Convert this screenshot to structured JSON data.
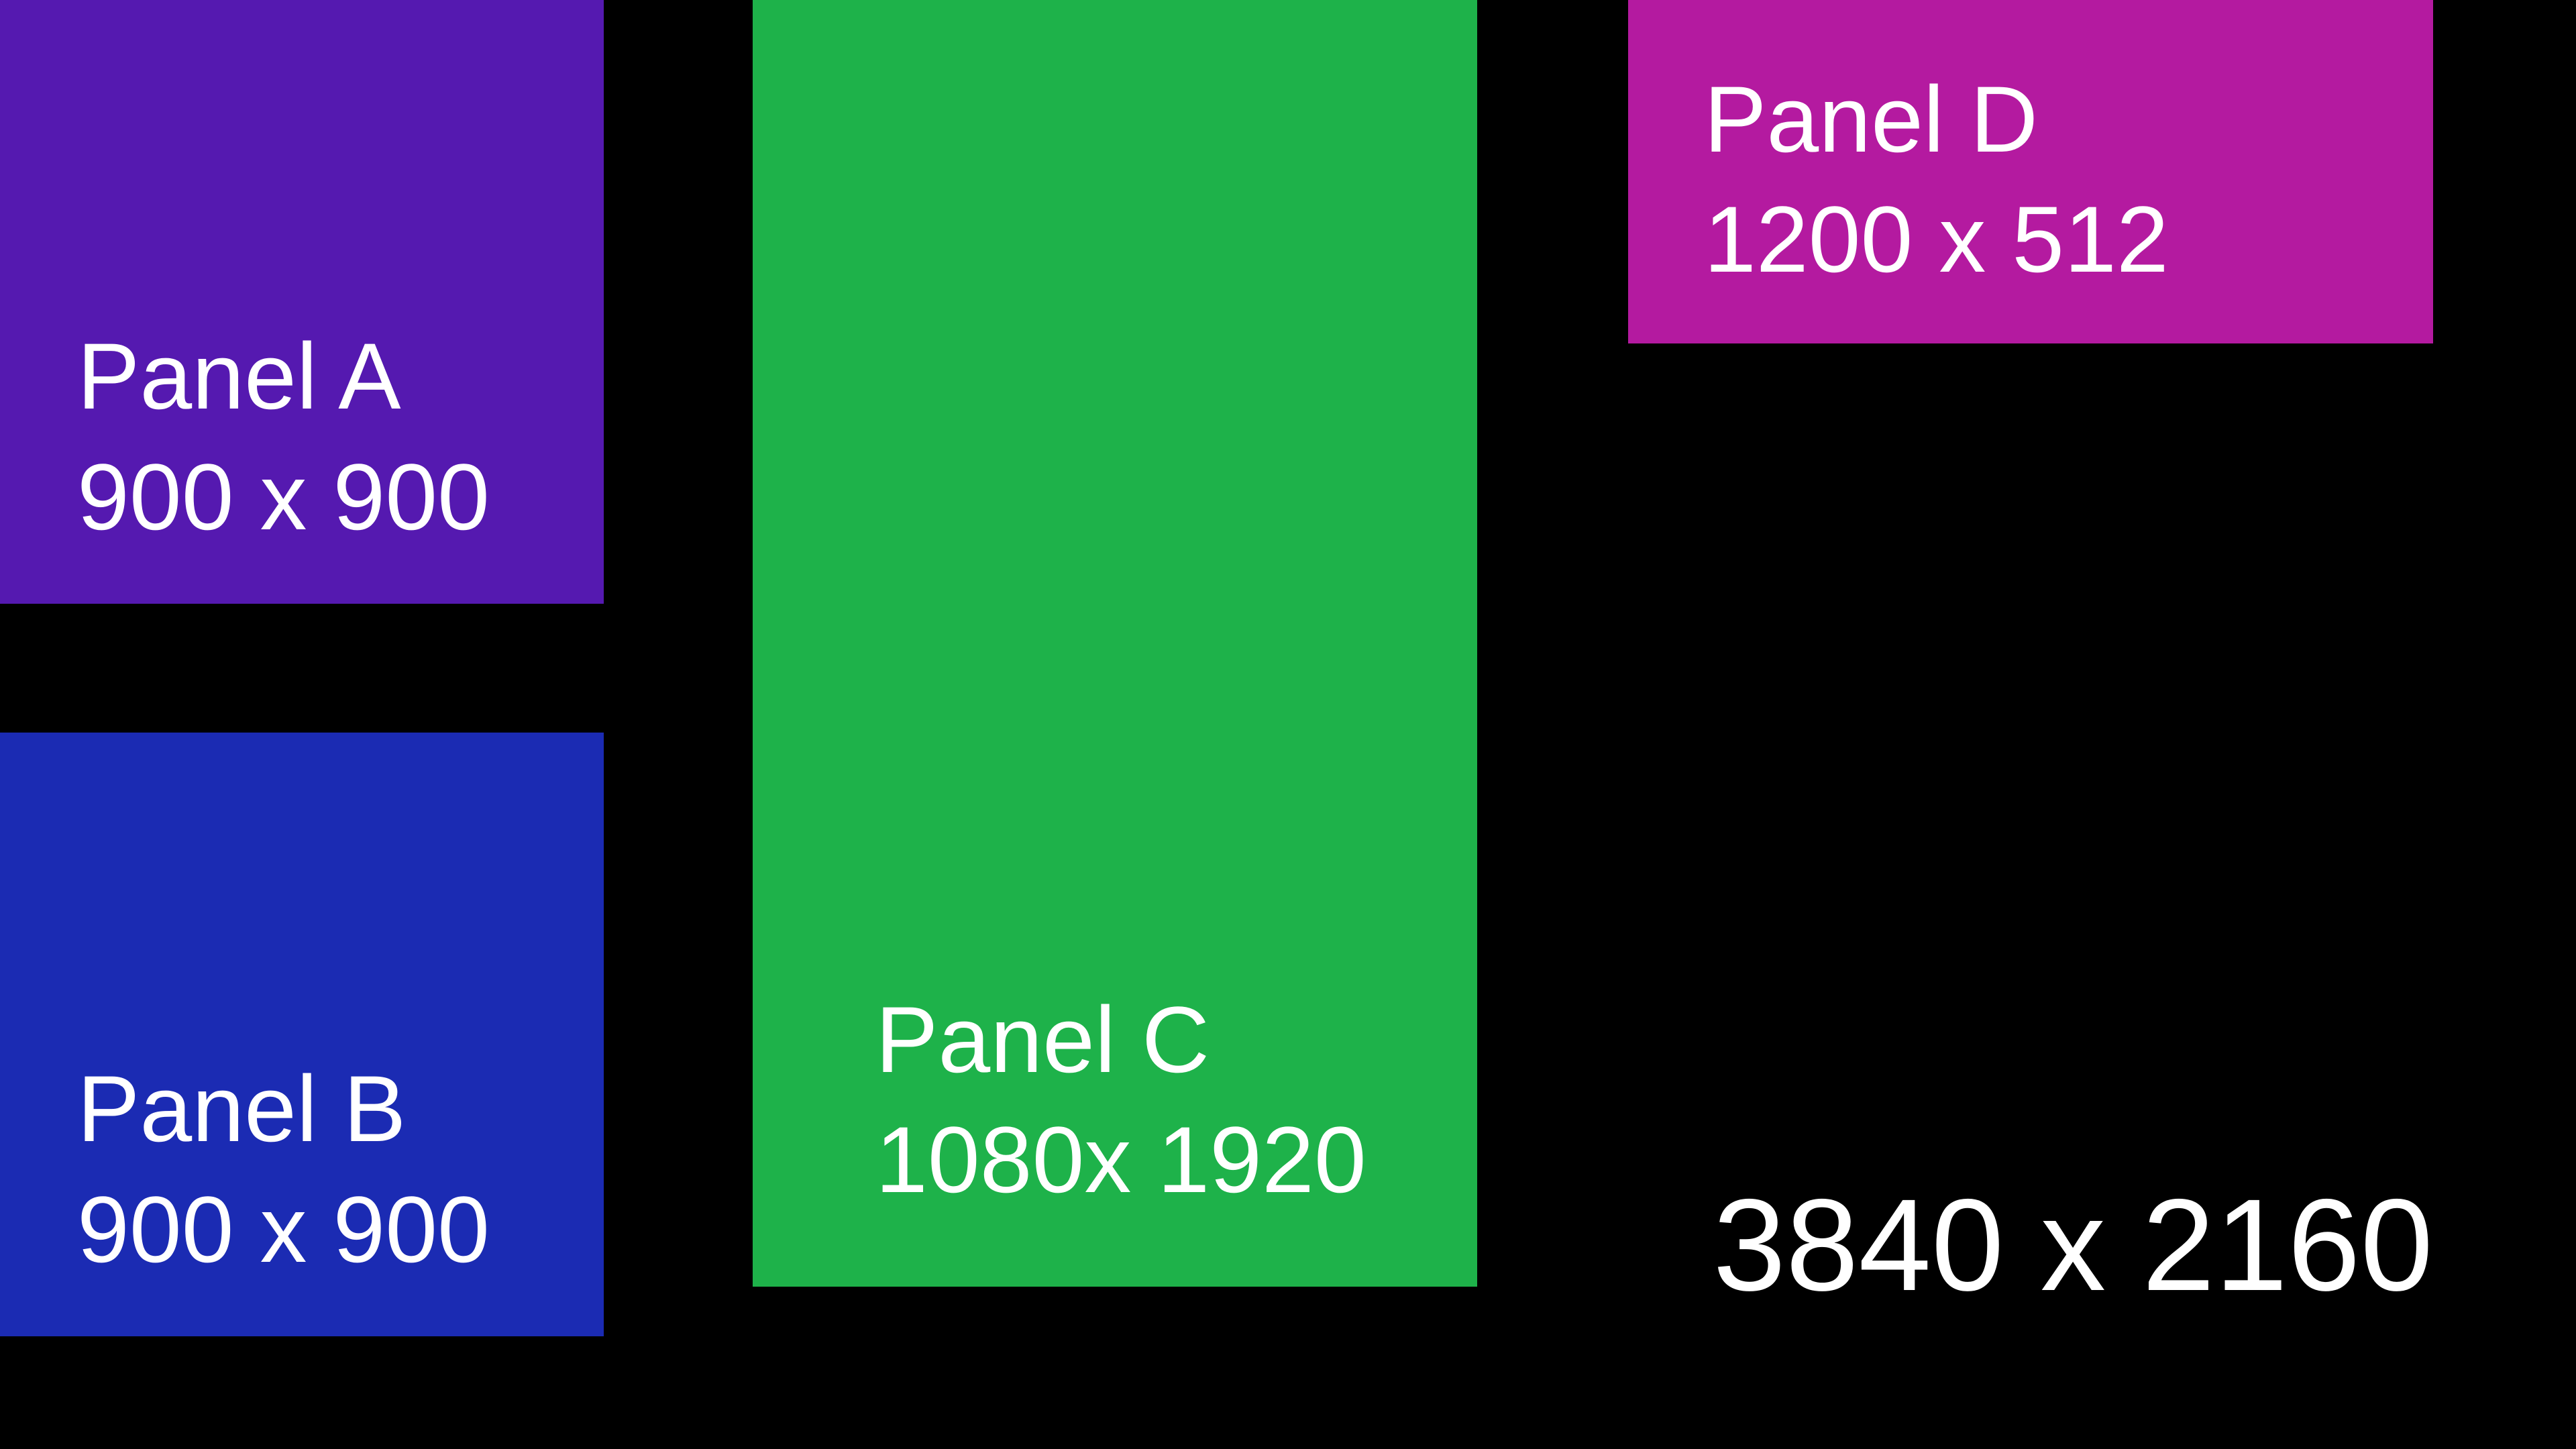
{
  "colors": {
    "background": "#000000",
    "panel_a": "#5519b0",
    "panel_b": "#1b2bb3",
    "panel_c": "#1eb24a",
    "panel_d": "#b41aa0",
    "text": "#ffffff"
  },
  "panels": [
    {
      "name": "Panel A",
      "size": "900 x 900"
    },
    {
      "name": "Panel B",
      "size": "900 x 900"
    },
    {
      "name": "Panel C",
      "size": "1080x 1920"
    },
    {
      "name": "Panel D",
      "size": "1200 x 512"
    }
  ],
  "screen_size": "3840 x 2160"
}
